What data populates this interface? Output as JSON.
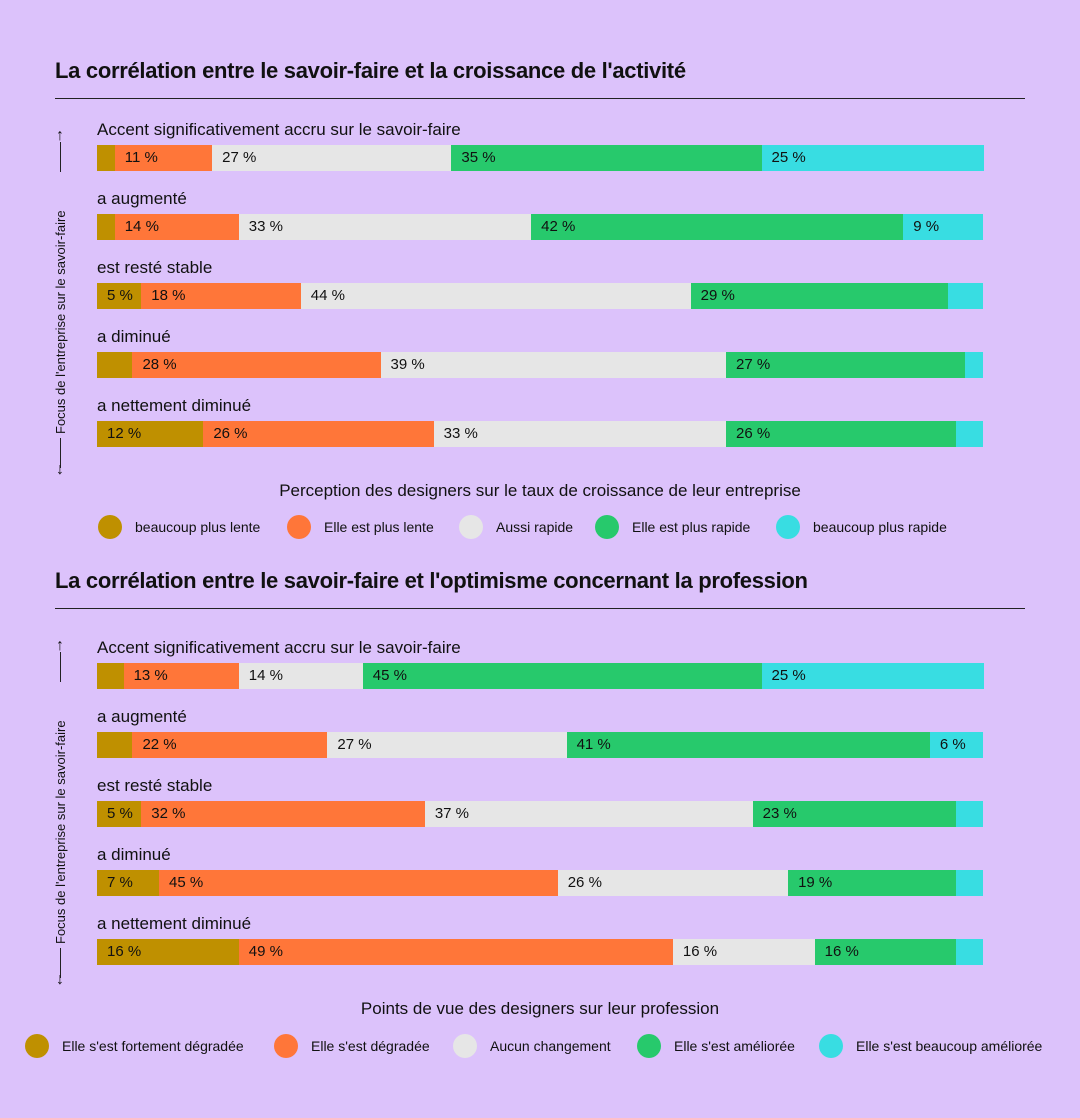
{
  "colors": {
    "much_slower": "#bf9000",
    "slower": "#ff7639",
    "same": "#e6e6e6",
    "faster": "#27c96c",
    "much_faster": "#38dde2",
    "background": "#dcc2fb"
  },
  "chart_data": [
    {
      "type": "bar",
      "stacked": true,
      "orientation": "horizontal",
      "title": "La corrélation entre le savoir-faire et la croissance de l'activité",
      "ylabel": "Focus de l'entreprise sur le savoir-faire",
      "legend_title": "Perception des designers sur le taux de croissance de leur entreprise",
      "categories": [
        "Accent significativement accru sur le savoir-faire",
        "a augmenté",
        "est resté stable",
        "a diminué",
        "a nettement diminué"
      ],
      "series": [
        {
          "name": "beaucoup plus lente",
          "values": [
            2,
            2,
            5,
            4,
            12
          ],
          "labels": [
            "",
            "",
            "5 %",
            "",
            "12 %"
          ]
        },
        {
          "name": "Elle est plus lente",
          "values": [
            11,
            14,
            18,
            28,
            26
          ],
          "labels": [
            "11 %",
            "14 %",
            "18 %",
            "28 %",
            "26 %"
          ]
        },
        {
          "name": "Aussi rapide",
          "values": [
            27,
            33,
            44,
            39,
            33
          ],
          "labels": [
            "27 %",
            "33 %",
            "44 %",
            "39 %",
            "33 %"
          ]
        },
        {
          "name": "Elle est plus rapide",
          "values": [
            35,
            42,
            29,
            27,
            26
          ],
          "labels": [
            "35 %",
            "42 %",
            "29 %",
            "27 %",
            "26 %"
          ]
        },
        {
          "name": "beaucoup plus rapide",
          "values": [
            25,
            9,
            4,
            2,
            3
          ],
          "labels": [
            "25 %",
            "9 %",
            "",
            "",
            ""
          ]
        }
      ]
    },
    {
      "type": "bar",
      "stacked": true,
      "orientation": "horizontal",
      "title": "La corrélation entre le savoir-faire et l'optimisme concernant la profession",
      "ylabel": "Focus de l'entreprise sur le savoir-faire",
      "legend_title": "Points de vue des designers sur leur profession",
      "categories": [
        "Accent significativement accru sur le savoir-faire",
        "a augmenté",
        "est resté stable",
        "a diminué",
        "a nettement diminué"
      ],
      "series": [
        {
          "name": "Elle s'est fortement dégradée",
          "values": [
            3,
            4,
            5,
            7,
            16
          ],
          "labels": [
            "",
            "",
            "5 %",
            "7 %",
            "16 %"
          ]
        },
        {
          "name": "Elle s'est dégradée",
          "values": [
            13,
            22,
            32,
            45,
            49
          ],
          "labels": [
            "13 %",
            "22 %",
            "32 %",
            "45 %",
            "49 %"
          ]
        },
        {
          "name": "Aucun changement",
          "values": [
            14,
            27,
            37,
            26,
            16
          ],
          "labels": [
            "14 %",
            "27 %",
            "37 %",
            "26 %",
            "16 %"
          ]
        },
        {
          "name": "Elle s'est améliorée",
          "values": [
            45,
            41,
            23,
            19,
            16
          ],
          "labels": [
            "45 %",
            "41 %",
            "23 %",
            "19 %",
            "16 %"
          ]
        },
        {
          "name": "Elle s'est beaucoup améliorée",
          "values": [
            25,
            6,
            3,
            3,
            3
          ],
          "labels": [
            "25 %",
            "6 %",
            "",
            "",
            ""
          ]
        }
      ]
    }
  ]
}
